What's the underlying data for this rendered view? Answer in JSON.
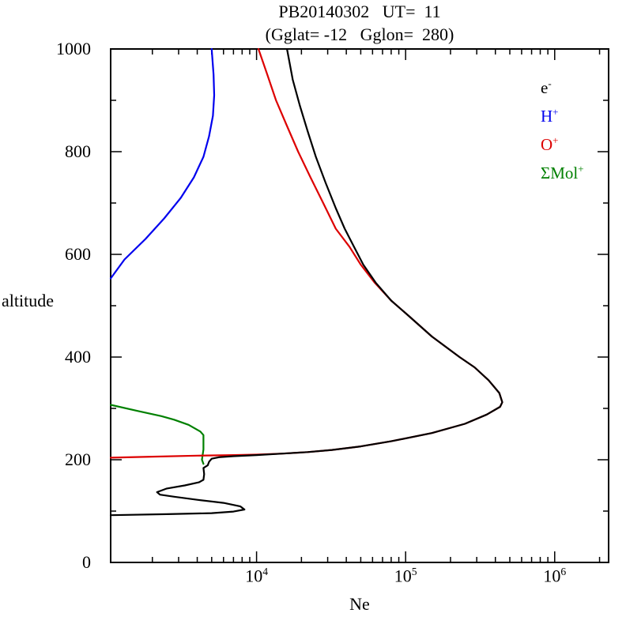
{
  "chart_data": {
    "type": "line",
    "title": "PB20140302   UT=  11",
    "subtitle": "(Gglat= -12   Gglon=  280)",
    "xlabel": "Ne",
    "ylabel": "altitude",
    "x_scale": "log",
    "xlim": [
      1050,
      2300000
    ],
    "ylim": [
      0,
      1000
    ],
    "grid": false,
    "legend_position": "top-right-inside",
    "x_major_ticks": [
      {
        "value": 10000,
        "base": "10",
        "sup": "4"
      },
      {
        "value": 100000,
        "base": "10",
        "sup": "5"
      },
      {
        "value": 1000000,
        "base": "10",
        "sup": "6"
      }
    ],
    "y_major_ticks": [
      {
        "value": 0,
        "label": "0"
      },
      {
        "value": 200,
        "label": "200"
      },
      {
        "value": 400,
        "label": "400"
      },
      {
        "value": 600,
        "label": "600"
      },
      {
        "value": 800,
        "label": "800"
      },
      {
        "value": 1000,
        "label": "1000"
      }
    ],
    "y_minor_step": 100,
    "legend": [
      {
        "name_id": "legend-item-electron",
        "base": "e",
        "sup": "-",
        "color": "#000000"
      },
      {
        "name_id": "legend-item-h-plus",
        "base": "H",
        "sup": "+",
        "color": "#0000ee"
      },
      {
        "name_id": "legend-item-o-plus",
        "base": "O",
        "sup": "+",
        "color": "#dd0000"
      },
      {
        "name_id": "legend-item-mol-plus",
        "base": "ΣMol",
        "sup": "+",
        "color": "#008000"
      }
    ],
    "series": [
      {
        "name": "H+",
        "color": "#0000ee",
        "points": [
          [
            1050,
            553
          ],
          [
            1300,
            590
          ],
          [
            1800,
            630
          ],
          [
            2400,
            670
          ],
          [
            3100,
            710
          ],
          [
            3800,
            750
          ],
          [
            4400,
            790
          ],
          [
            4800,
            830
          ],
          [
            5100,
            870
          ],
          [
            5200,
            910
          ],
          [
            5150,
            950
          ],
          [
            5000,
            1000
          ]
        ]
      },
      {
        "name": "SigmaMol+",
        "color": "#008000",
        "points": [
          [
            1050,
            307
          ],
          [
            1600,
            295
          ],
          [
            2300,
            285
          ],
          [
            2800,
            278
          ],
          [
            3500,
            268
          ],
          [
            4200,
            255
          ],
          [
            4400,
            248
          ],
          [
            4400,
            220
          ],
          [
            4300,
            200
          ],
          [
            4400,
            192
          ]
        ]
      },
      {
        "name": "O+",
        "color": "#dd0000",
        "points": [
          [
            1050,
            204
          ],
          [
            2000,
            206
          ],
          [
            4000,
            208
          ],
          [
            7000,
            209
          ],
          [
            10000,
            210
          ],
          [
            15000,
            212
          ],
          [
            22000,
            215
          ],
          [
            32000,
            219
          ],
          [
            50000,
            226
          ],
          [
            80000,
            236
          ],
          [
            150000,
            252
          ],
          [
            250000,
            270
          ],
          [
            350000,
            288
          ],
          [
            430000,
            303
          ],
          [
            445000,
            312
          ],
          [
            425000,
            330
          ],
          [
            360000,
            355
          ],
          [
            290000,
            380
          ],
          [
            230000,
            400
          ],
          [
            150000,
            440
          ],
          [
            105000,
            480
          ],
          [
            80000,
            510
          ],
          [
            62000,
            545
          ],
          [
            50000,
            580
          ],
          [
            42000,
            615
          ],
          [
            34000,
            650
          ],
          [
            28000,
            700
          ],
          [
            23000,
            750
          ],
          [
            19000,
            800
          ],
          [
            16000,
            850
          ],
          [
            13500,
            900
          ],
          [
            11800,
            950
          ],
          [
            10300,
            1000
          ]
        ]
      },
      {
        "name": "e-",
        "color": "#000000",
        "points": [
          [
            1050,
            92
          ],
          [
            2500,
            94
          ],
          [
            5000,
            96
          ],
          [
            7000,
            99
          ],
          [
            8300,
            103
          ],
          [
            7800,
            109
          ],
          [
            6000,
            116
          ],
          [
            4000,
            122
          ],
          [
            2800,
            128
          ],
          [
            2250,
            132
          ],
          [
            2150,
            137
          ],
          [
            2500,
            144
          ],
          [
            3300,
            150
          ],
          [
            4100,
            156
          ],
          [
            4400,
            161
          ],
          [
            4450,
            172
          ],
          [
            4400,
            184
          ],
          [
            4700,
            189
          ],
          [
            4800,
            196
          ],
          [
            5000,
            202
          ],
          [
            5600,
            205
          ],
          [
            7000,
            207
          ],
          [
            10000,
            209
          ],
          [
            15000,
            212
          ],
          [
            22000,
            215
          ],
          [
            32000,
            219
          ],
          [
            50000,
            226
          ],
          [
            80000,
            236
          ],
          [
            150000,
            252
          ],
          [
            250000,
            270
          ],
          [
            350000,
            288
          ],
          [
            430000,
            303
          ],
          [
            445000,
            312
          ],
          [
            425000,
            330
          ],
          [
            360000,
            355
          ],
          [
            290000,
            380
          ],
          [
            230000,
            400
          ],
          [
            150000,
            440
          ],
          [
            105000,
            480
          ],
          [
            80000,
            510
          ],
          [
            63000,
            545
          ],
          [
            52000,
            580
          ],
          [
            45000,
            615
          ],
          [
            39000,
            650
          ],
          [
            34000,
            690
          ],
          [
            29000,
            740
          ],
          [
            25000,
            790
          ],
          [
            22000,
            840
          ],
          [
            19500,
            890
          ],
          [
            17500,
            940
          ],
          [
            16000,
            1000
          ]
        ]
      }
    ]
  }
}
